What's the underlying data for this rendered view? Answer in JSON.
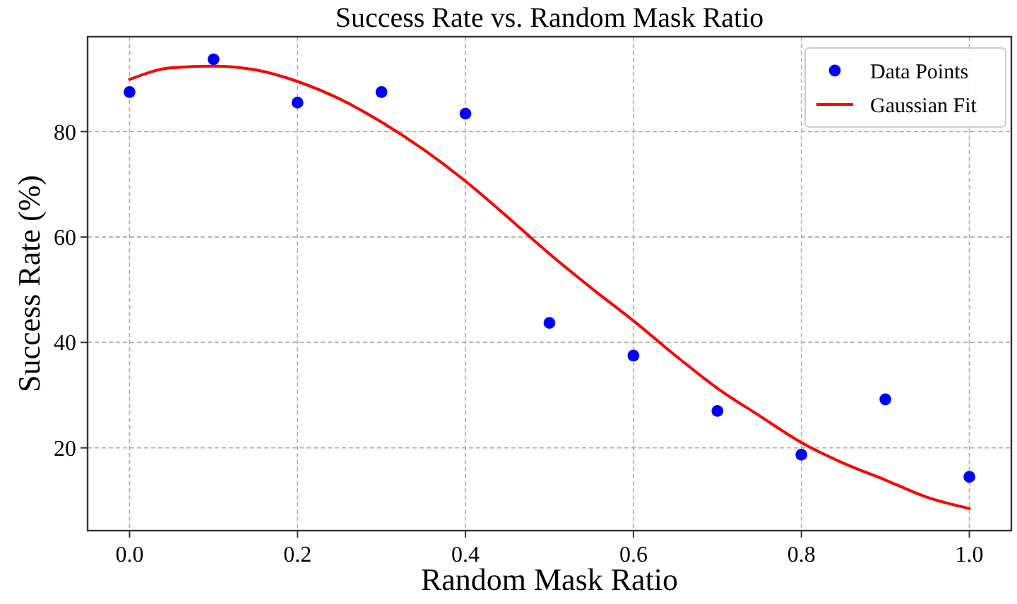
{
  "chart_data": {
    "type": "scatter",
    "title": "Success Rate vs. Random Mask Ratio",
    "xlabel": "Random Mask Ratio",
    "ylabel": "Success Rate (%)",
    "xlim": [
      -0.05,
      1.05
    ],
    "ylim": [
      4.3,
      98
    ],
    "xticks": [
      {
        "value": 0,
        "label": "0.0"
      },
      0.2,
      0.4,
      0.6,
      0.8,
      {
        "value": 1,
        "label": "1.0"
      }
    ],
    "yticks": [
      20,
      40,
      60,
      80
    ],
    "grid": true,
    "legend": "top right",
    "series": [
      {
        "name": "Data Points",
        "marker": "circle",
        "color": "#0000ff",
        "x": [
          0,
          0.1,
          0.2,
          0.3,
          0.4,
          0.5,
          0.6,
          0.7,
          0.8,
          0.9,
          1.0
        ],
        "values": [
          87.5,
          93.7,
          85.5,
          87.5,
          83.4,
          43.7,
          37.5,
          27.0,
          18.7,
          29.2,
          14.5
        ]
      },
      {
        "name": "Gaussian Fit",
        "type": "line",
        "marker": "none",
        "line_style": "solid",
        "color": "#ff0000",
        "x": [
          0,
          0.05,
          0.1,
          0.15,
          0.2,
          0.25,
          0.3,
          0.35,
          0.4,
          0.45,
          0.5,
          0.55,
          0.6,
          0.65,
          0.7,
          0.75,
          0.8,
          0.85,
          0.9,
          0.95,
          1.0
        ],
        "values": [
          89.9,
          92.1,
          92.4,
          91.7,
          89.5,
          86.2,
          81.8,
          76.6,
          70.6,
          63.8,
          56.8,
          50.3,
          44.1,
          37.5,
          31.3,
          26.1,
          21.0,
          17.1,
          13.9,
          10.6,
          8.5
        ]
      }
    ]
  }
}
